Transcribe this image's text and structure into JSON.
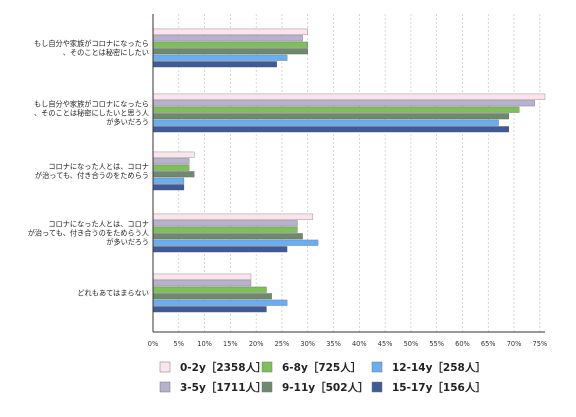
{
  "chart_data": {
    "type": "bar",
    "orientation": "horizontal",
    "categories": [
      [
        "もし自分や家族がコロナになったら",
        "、そのことは秘密にしたい"
      ],
      [
        "もし自分や家族がコロナになったら",
        "、そのことは秘密にしたいと思う人",
        "が多いだろう"
      ],
      [
        "コロナになった人とは、コロナ",
        "が治っても、付き合うのをためらう"
      ],
      [
        "コロナになった人とは、コロナ",
        "が治っても、付き合うのをためらう人",
        "が多いだろう"
      ],
      [
        "どれもあてはまらない"
      ]
    ],
    "xticks": [
      "0%",
      "5%",
      "10%",
      "15%",
      "20%",
      "25%",
      "30%",
      "35%",
      "40%",
      "45%",
      "50%",
      "55%",
      "60%",
      "65%",
      "70%",
      "75%"
    ],
    "xlim": [
      0,
      76
    ],
    "grid": true,
    "series": [
      {
        "name": "0-2y［2358人］",
        "color": "#fce4ec",
        "values": [
          30,
          76,
          8,
          31,
          19
        ]
      },
      {
        "name": "3-5y［1711人］",
        "color": "#b6b1cc",
        "values": [
          29,
          74,
          7,
          28,
          19
        ]
      },
      {
        "name": "6-8y［725人］",
        "color": "#7fbf5a",
        "values": [
          30,
          71,
          7,
          28,
          22
        ]
      },
      {
        "name": "9-11y［502人］",
        "color": "#6d8a6c",
        "values": [
          30,
          69,
          8,
          29,
          23
        ]
      },
      {
        "name": "12-14y［258人］",
        "color": "#6aaef2",
        "values": [
          26,
          67,
          6,
          32,
          26
        ]
      },
      {
        "name": "15-17y［156人］",
        "color": "#3f5a96",
        "values": [
          24,
          69,
          6,
          26,
          22
        ]
      }
    ],
    "legend_position": "bottom"
  }
}
